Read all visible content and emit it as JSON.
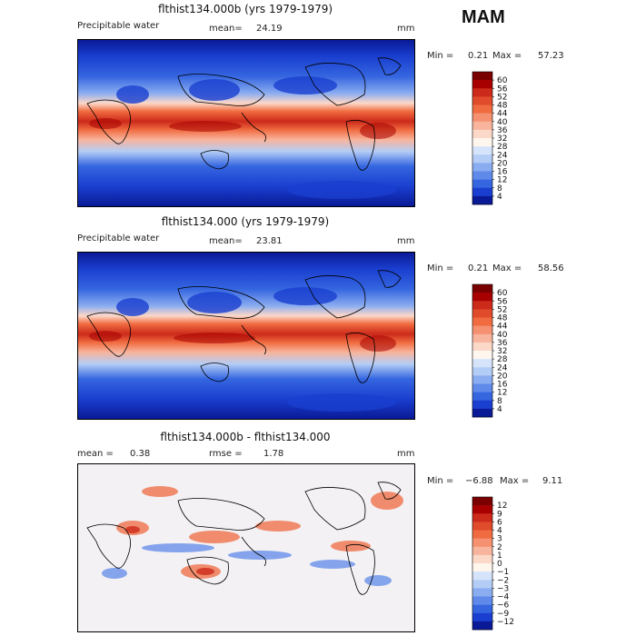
{
  "season": "MAM",
  "panels": [
    {
      "title": "flthist134.000b (yrs 1979-1979)",
      "variable": "Precipitable water",
      "mean_label": "mean=",
      "mean_value": "24.19",
      "units": "mm",
      "min_label": "Min =",
      "min_value": "0.21",
      "max_label": "Max =",
      "max_value": "57.23",
      "colorbar_labels": [
        "60",
        "56",
        "52",
        "48",
        "44",
        "40",
        "36",
        "32",
        "28",
        "24",
        "20",
        "16",
        "12",
        "8",
        "4"
      ],
      "colorbar_colors": [
        "#7a0000",
        "#a80000",
        "#cc2a1a",
        "#e04b2b",
        "#f06b40",
        "#f59070",
        "#f8b49c",
        "#fcd8c8",
        "#fff6ee",
        "#d6e4fb",
        "#b4cdf6",
        "#8aacf0",
        "#5f8aea",
        "#3566e0",
        "#1a3fd0",
        "#0a1a96"
      ]
    },
    {
      "title": "flthist134.000 (yrs 1979-1979)",
      "variable": "Precipitable water",
      "mean_label": "mean=",
      "mean_value": "23.81",
      "units": "mm",
      "min_label": "Min =",
      "min_value": "0.21",
      "max_label": "Max =",
      "max_value": "58.56",
      "colorbar_labels": [
        "60",
        "56",
        "52",
        "48",
        "44",
        "40",
        "36",
        "32",
        "28",
        "24",
        "20",
        "16",
        "12",
        "8",
        "4"
      ],
      "colorbar_colors": [
        "#7a0000",
        "#a80000",
        "#cc2a1a",
        "#e04b2b",
        "#f06b40",
        "#f59070",
        "#f8b49c",
        "#fcd8c8",
        "#fff6ee",
        "#d6e4fb",
        "#b4cdf6",
        "#8aacf0",
        "#5f8aea",
        "#3566e0",
        "#1a3fd0",
        "#0a1a96"
      ]
    },
    {
      "title": "flthist134.000b - flthist134.000",
      "mean_label": "mean =",
      "mean_value": "0.38",
      "rmse_label": "rmse =",
      "rmse_value": "1.78",
      "units": "mm",
      "min_label": "Min =",
      "min_value": "−6.88",
      "max_label": "Max =",
      "max_value": "9.11",
      "colorbar_labels": [
        "12",
        "9",
        "6",
        "4",
        "3",
        "2",
        "1",
        "0",
        "−1",
        "−2",
        "−3",
        "−4",
        "−6",
        "−9",
        "−12"
      ],
      "colorbar_colors": [
        "#7a0000",
        "#a80000",
        "#cc2a1a",
        "#e04b2b",
        "#f06b40",
        "#f59070",
        "#f8b49c",
        "#fcd8c8",
        "#fff6ee",
        "#d6e4fb",
        "#b4cdf6",
        "#8aacf0",
        "#5f8aea",
        "#3566e0",
        "#1a3fd0",
        "#0a1a96"
      ]
    }
  ],
  "chart_data": [
    {
      "type": "heatmap",
      "title": "flthist134.000b (yrs 1979-1979)",
      "subtitle": "Precipitable water",
      "units": "mm",
      "mean": 24.19,
      "min": 0.21,
      "max": 57.23,
      "color_levels": [
        4,
        8,
        12,
        16,
        20,
        24,
        28,
        32,
        36,
        40,
        44,
        48,
        52,
        56,
        60
      ],
      "xlim": [
        0,
        360
      ],
      "ylim": [
        -90,
        90
      ]
    },
    {
      "type": "heatmap",
      "title": "flthist134.000 (yrs 1979-1979)",
      "subtitle": "Precipitable water",
      "units": "mm",
      "mean": 23.81,
      "min": 0.21,
      "max": 58.56,
      "color_levels": [
        4,
        8,
        12,
        16,
        20,
        24,
        28,
        32,
        36,
        40,
        44,
        48,
        52,
        56,
        60
      ],
      "xlim": [
        0,
        360
      ],
      "ylim": [
        -90,
        90
      ]
    },
    {
      "type": "heatmap",
      "title": "flthist134.000b - flthist134.000",
      "units": "mm",
      "mean": 0.38,
      "rmse": 1.78,
      "min": -6.88,
      "max": 9.11,
      "color_levels": [
        -12,
        -9,
        -6,
        -4,
        -3,
        -2,
        -1,
        0,
        1,
        2,
        3,
        4,
        6,
        9,
        12
      ],
      "xlim": [
        0,
        360
      ],
      "ylim": [
        -90,
        90
      ]
    }
  ]
}
